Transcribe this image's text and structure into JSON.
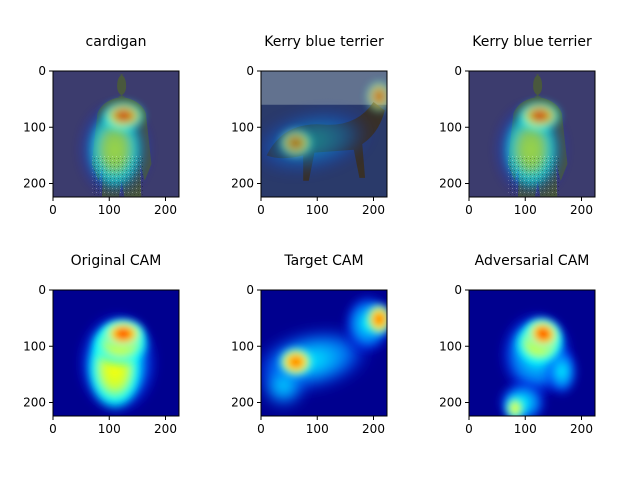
{
  "chart_data": [
    {
      "type": "heatmap",
      "title": "cardigan",
      "content": "cam-overlay-person",
      "x_ticks": [
        0,
        100,
        200
      ],
      "y_ticks": [
        0,
        100,
        200
      ],
      "xlim": [
        0,
        224
      ],
      "ylim": [
        224,
        0
      ],
      "grid": false
    },
    {
      "type": "heatmap",
      "title": "Kerry blue terrier",
      "content": "cam-overlay-dog",
      "x_ticks": [
        0,
        100,
        200
      ],
      "y_ticks": [
        0,
        100,
        200
      ],
      "xlim": [
        0,
        224
      ],
      "ylim": [
        224,
        0
      ],
      "grid": false
    },
    {
      "type": "heatmap",
      "title": "Kerry blue terrier",
      "content": "cam-overlay-person",
      "x_ticks": [
        0,
        100,
        200
      ],
      "y_ticks": [
        0,
        100,
        200
      ],
      "xlim": [
        0,
        224
      ],
      "ylim": [
        224,
        0
      ],
      "grid": false
    },
    {
      "type": "heatmap",
      "title": "Original CAM",
      "content": "cam-original",
      "x_ticks": [
        0,
        100,
        200
      ],
      "y_ticks": [
        0,
        100,
        200
      ],
      "xlim": [
        0,
        224
      ],
      "ylim": [
        224,
        0
      ],
      "grid": false
    },
    {
      "type": "heatmap",
      "title": "Target CAM",
      "content": "cam-target",
      "x_ticks": [
        0,
        100,
        200
      ],
      "y_ticks": [
        0,
        100,
        200
      ],
      "xlim": [
        0,
        224
      ],
      "ylim": [
        224,
        0
      ],
      "grid": false
    },
    {
      "type": "heatmap",
      "title": "Adversarial CAM",
      "content": "cam-adversarial",
      "x_ticks": [
        0,
        100,
        200
      ],
      "y_ticks": [
        0,
        100,
        200
      ],
      "xlim": [
        0,
        224
      ],
      "ylim": [
        224,
        0
      ],
      "grid": false
    }
  ],
  "colors": {
    "jet_dark_blue": "#00008f",
    "jet_blue": "#0000ff",
    "jet_cyan": "#00ffff",
    "jet_yellow": "#ffff00",
    "jet_red": "#ff0000",
    "jet_dark_red": "#800000",
    "overlay_base": "#3c3c6e"
  }
}
